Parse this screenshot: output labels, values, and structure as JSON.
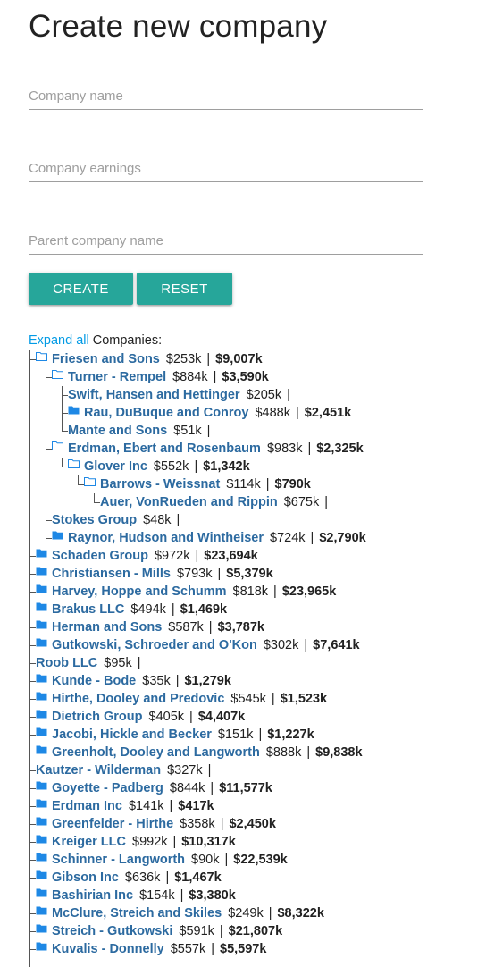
{
  "page": {
    "title": "Create new company",
    "form": {
      "name_placeholder": "Company name",
      "earnings_placeholder": "Company earnings",
      "parent_placeholder": "Parent company name",
      "create_label": "CREATE",
      "reset_label": "RESET"
    },
    "tree_header": {
      "expand_all": "Expand all",
      "label": "Companies:"
    }
  },
  "colors": {
    "accent": "#26a69a",
    "link": "#039be5",
    "company_name": "#2c6aa0",
    "folder": "#1e88e5"
  },
  "tree": [
    {
      "name": "Friesen and Sons",
      "earnings": "$253k",
      "total": "$9,007k",
      "depth": 0,
      "icon": "folder-open-icon",
      "last": false
    },
    {
      "name": "Turner - Rempel",
      "earnings": "$884k",
      "total": "$3,590k",
      "depth": 1,
      "icon": "folder-open-icon",
      "last": false
    },
    {
      "name": "Swift, Hansen and Hettinger",
      "earnings": "$205k",
      "total": "",
      "depth": 2,
      "icon": "",
      "last": false
    },
    {
      "name": "Rau, DuBuque and Conroy",
      "earnings": "$488k",
      "total": "$2,451k",
      "depth": 2,
      "icon": "folder-icon",
      "last": false
    },
    {
      "name": "Mante and Sons",
      "earnings": "$51k",
      "total": "",
      "depth": 2,
      "icon": "",
      "last": true
    },
    {
      "name": "Erdman, Ebert and Rosenbaum",
      "earnings": "$983k",
      "total": "$2,325k",
      "depth": 1,
      "icon": "folder-open-icon",
      "last": false
    },
    {
      "name": "Glover Inc",
      "earnings": "$552k",
      "total": "$1,342k",
      "depth": 2,
      "icon": "folder-open-icon",
      "last": true
    },
    {
      "name": "Barrows - Weissnat",
      "earnings": "$114k",
      "total": "$790k",
      "depth": 3,
      "icon": "folder-open-icon",
      "last": true
    },
    {
      "name": "Auer, VonRueden and Rippin",
      "earnings": "$675k",
      "total": "",
      "depth": 4,
      "icon": "",
      "last": true
    },
    {
      "name": "Stokes Group",
      "earnings": "$48k",
      "total": "",
      "depth": 1,
      "icon": "",
      "last": false
    },
    {
      "name": "Raynor, Hudson and Wintheiser",
      "earnings": "$724k",
      "total": "$2,790k",
      "depth": 1,
      "icon": "folder-icon",
      "last": true
    },
    {
      "name": "Schaden Group",
      "earnings": "$972k",
      "total": "$23,694k",
      "depth": 0,
      "icon": "folder-icon",
      "last": false
    },
    {
      "name": "Christiansen - Mills",
      "earnings": "$793k",
      "total": "$5,379k",
      "depth": 0,
      "icon": "folder-icon",
      "last": false
    },
    {
      "name": "Harvey, Hoppe and Schumm",
      "earnings": "$818k",
      "total": "$23,965k",
      "depth": 0,
      "icon": "folder-icon",
      "last": false
    },
    {
      "name": "Brakus LLC",
      "earnings": "$494k",
      "total": "$1,469k",
      "depth": 0,
      "icon": "folder-icon",
      "last": false
    },
    {
      "name": "Herman and Sons",
      "earnings": "$587k",
      "total": "$3,787k",
      "depth": 0,
      "icon": "folder-icon",
      "last": false
    },
    {
      "name": "Gutkowski, Schroeder and O'Kon",
      "earnings": "$302k",
      "total": "$7,641k",
      "depth": 0,
      "icon": "folder-icon",
      "last": false
    },
    {
      "name": "Roob LLC",
      "earnings": "$95k",
      "total": "",
      "depth": 0,
      "icon": "",
      "last": false
    },
    {
      "name": "Kunde - Bode",
      "earnings": "$35k",
      "total": "$1,279k",
      "depth": 0,
      "icon": "folder-icon",
      "last": false
    },
    {
      "name": "Hirthe, Dooley and Predovic",
      "earnings": "$545k",
      "total": "$1,523k",
      "depth": 0,
      "icon": "folder-icon",
      "last": false
    },
    {
      "name": "Dietrich Group",
      "earnings": "$405k",
      "total": "$4,407k",
      "depth": 0,
      "icon": "folder-icon",
      "last": false
    },
    {
      "name": "Jacobi, Hickle and Becker",
      "earnings": "$151k",
      "total": "$1,227k",
      "depth": 0,
      "icon": "folder-icon",
      "last": false
    },
    {
      "name": "Greenholt, Dooley and Langworth",
      "earnings": "$888k",
      "total": "$9,838k",
      "depth": 0,
      "icon": "folder-icon",
      "last": false
    },
    {
      "name": "Kautzer - Wilderman",
      "earnings": "$327k",
      "total": "",
      "depth": 0,
      "icon": "",
      "last": false
    },
    {
      "name": "Goyette - Padberg",
      "earnings": "$844k",
      "total": "$11,577k",
      "depth": 0,
      "icon": "folder-icon",
      "last": false
    },
    {
      "name": "Erdman Inc",
      "earnings": "$141k",
      "total": "$417k",
      "depth": 0,
      "icon": "folder-icon",
      "last": false
    },
    {
      "name": "Greenfelder - Hirthe",
      "earnings": "$358k",
      "total": "$2,450k",
      "depth": 0,
      "icon": "folder-icon",
      "last": false
    },
    {
      "name": "Kreiger LLC",
      "earnings": "$992k",
      "total": "$10,317k",
      "depth": 0,
      "icon": "folder-icon",
      "last": false
    },
    {
      "name": "Schinner - Langworth",
      "earnings": "$90k",
      "total": "$22,539k",
      "depth": 0,
      "icon": "folder-icon",
      "last": false
    },
    {
      "name": "Gibson Inc",
      "earnings": "$636k",
      "total": "$1,467k",
      "depth": 0,
      "icon": "folder-icon",
      "last": false
    },
    {
      "name": "Bashirian Inc",
      "earnings": "$154k",
      "total": "$3,380k",
      "depth": 0,
      "icon": "folder-icon",
      "last": false
    },
    {
      "name": "McClure, Streich and Skiles",
      "earnings": "$249k",
      "total": "$8,322k",
      "depth": 0,
      "icon": "folder-icon",
      "last": false
    },
    {
      "name": "Streich - Gutkowski",
      "earnings": "$591k",
      "total": "$21,807k",
      "depth": 0,
      "icon": "folder-icon",
      "last": false
    },
    {
      "name": "Kuvalis - Donnelly",
      "earnings": "$557k",
      "total": "$5,597k",
      "depth": 0,
      "icon": "folder-icon",
      "last": false
    }
  ]
}
